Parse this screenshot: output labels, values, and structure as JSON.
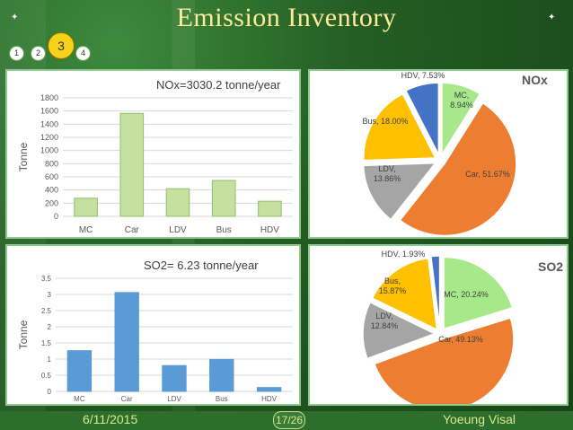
{
  "title": "Emission Inventory",
  "pager": {
    "pages": [
      "1",
      "2",
      "3",
      "4"
    ],
    "current": "3"
  },
  "footer": {
    "date": "6/11/2015",
    "page": "17/26",
    "author": "Yoeung Visal"
  },
  "colors": {
    "background": "#1f5a1f",
    "title": "#ffeb9a",
    "nox_bar": "#c5e0a0",
    "so2_bar": "#5b9bd5",
    "pie_mc": "#a6e88a",
    "pie_car": "#ed7d31",
    "pie_ldv": "#a5a5a5",
    "pie_bus": "#ffc000",
    "pie_hdv": "#4472c4"
  },
  "nox_bar": {
    "chart_data": {
      "type": "bar",
      "title": "NOx=3030.2 tonne/year",
      "ylabel": "Tonne",
      "categories": [
        "MC",
        "Car",
        "LDV",
        "Bus",
        "HDV"
      ],
      "values": [
        275,
        1565,
        420,
        545,
        230
      ],
      "ylim": [
        0,
        1800
      ],
      "yticks": [
        "0",
        "200",
        "400",
        "600",
        "800",
        "1000",
        "1200",
        "1400",
        "1600",
        "1800"
      ],
      "grid": true
    }
  },
  "nox_pie": {
    "label": "NOx",
    "chart_data": {
      "type": "pie",
      "categories": [
        "MC",
        "Car",
        "LDV",
        "Bus",
        "HDV"
      ],
      "values": [
        8.94,
        51.67,
        13.86,
        18.0,
        7.53
      ],
      "labels": [
        "MC,\n8.94%",
        "Car, 51.67%",
        "LDV,\n13.86%",
        "Bus, 18.00%",
        "HDV, 7.53%"
      ]
    }
  },
  "so2_bar": {
    "chart_data": {
      "type": "bar",
      "title": "SO2= 6.23 tonne/year",
      "ylabel": "Tonne",
      "categories": [
        "MC",
        "Car",
        "LDV",
        "Bus",
        "HDV"
      ],
      "values": [
        1.26,
        3.06,
        0.8,
        0.99,
        0.12
      ],
      "ylim": [
        0,
        3.5
      ],
      "yticks": [
        "0",
        "0.5",
        "1",
        "1.5",
        "2",
        "2.5",
        "3",
        "3.5"
      ],
      "grid": true
    }
  },
  "so2_pie": {
    "label": "SO2",
    "chart_data": {
      "type": "pie",
      "categories": [
        "MC",
        "Car",
        "LDV",
        "Bus",
        "HDV"
      ],
      "values": [
        20.24,
        49.13,
        12.84,
        15.87,
        1.93
      ],
      "labels": [
        "MC, 20.24%",
        "Car, 49.13%",
        "LDV,\n12.84%",
        "Bus,\n15.87%",
        "HDV, 1.93%"
      ]
    }
  }
}
